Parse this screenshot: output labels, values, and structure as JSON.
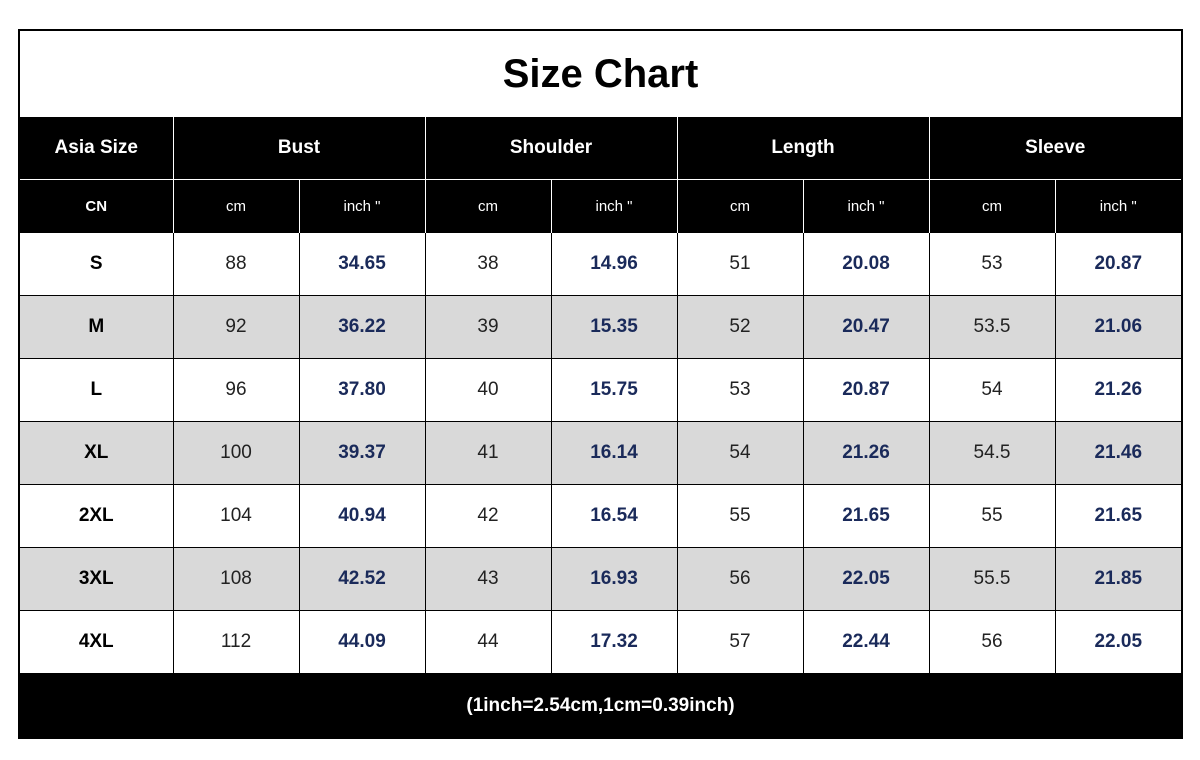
{
  "title": "Size Chart",
  "headers": {
    "size": "Asia Size",
    "bust": "Bust",
    "shoulder": "Shoulder",
    "length": "Length",
    "sleeve": "Sleeve"
  },
  "units": {
    "region": "CN",
    "cm": "cm",
    "inch": "inch \""
  },
  "rows": [
    {
      "size": "S",
      "bust_cm": "88",
      "bust_in": "34.65",
      "shoulder_cm": "38",
      "shoulder_in": "14.96",
      "length_cm": "51",
      "length_in": "20.08",
      "sleeve_cm": "53",
      "sleeve_in": "20.87"
    },
    {
      "size": "M",
      "bust_cm": "92",
      "bust_in": "36.22",
      "shoulder_cm": "39",
      "shoulder_in": "15.35",
      "length_cm": "52",
      "length_in": "20.47",
      "sleeve_cm": "53.5",
      "sleeve_in": "21.06"
    },
    {
      "size": "L",
      "bust_cm": "96",
      "bust_in": "37.80",
      "shoulder_cm": "40",
      "shoulder_in": "15.75",
      "length_cm": "53",
      "length_in": "20.87",
      "sleeve_cm": "54",
      "sleeve_in": "21.26"
    },
    {
      "size": "XL",
      "bust_cm": "100",
      "bust_in": "39.37",
      "shoulder_cm": "41",
      "shoulder_in": "16.14",
      "length_cm": "54",
      "length_in": "21.26",
      "sleeve_cm": "54.5",
      "sleeve_in": "21.46"
    },
    {
      "size": "2XL",
      "bust_cm": "104",
      "bust_in": "40.94",
      "shoulder_cm": "42",
      "shoulder_in": "16.54",
      "length_cm": "55",
      "length_in": "21.65",
      "sleeve_cm": "55",
      "sleeve_in": "21.65"
    },
    {
      "size": "3XL",
      "bust_cm": "108",
      "bust_in": "42.52",
      "shoulder_cm": "43",
      "shoulder_in": "16.93",
      "length_cm": "56",
      "length_in": "22.05",
      "sleeve_cm": "55.5",
      "sleeve_in": "21.85"
    },
    {
      "size": "4XL",
      "bust_cm": "112",
      "bust_in": "44.09",
      "shoulder_cm": "44",
      "shoulder_in": "17.32",
      "length_cm": "57",
      "length_in": "22.44",
      "sleeve_cm": "56",
      "sleeve_in": "22.05"
    }
  ],
  "footer": "(1inch=2.54cm,1cm=0.39inch)",
  "colors": {
    "header_bg": "#000000",
    "alt_row_bg": "#d9d9d9",
    "inch_text": "#1a2a5a"
  }
}
